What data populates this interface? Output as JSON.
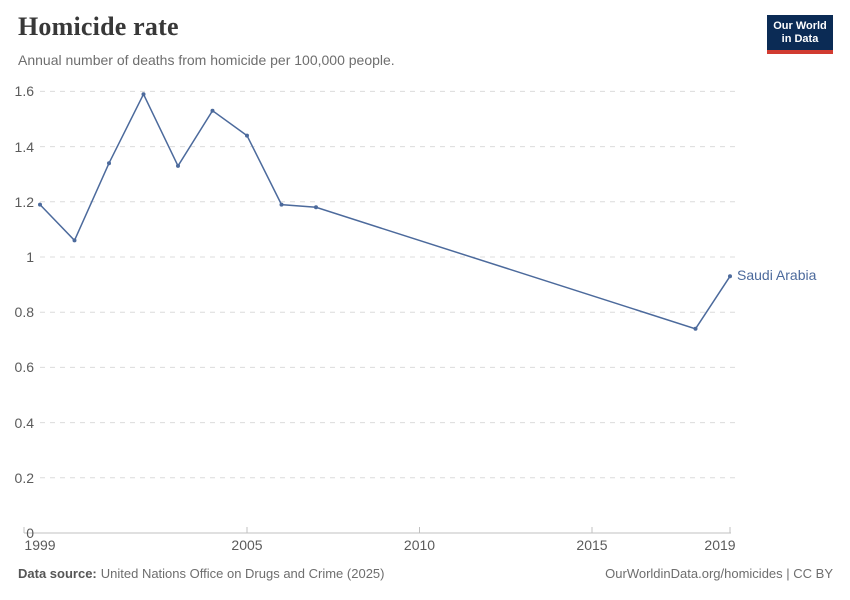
{
  "header": {
    "title": "Homicide rate",
    "subtitle": "Annual number of deaths from homicide per 100,000 people.",
    "logo": {
      "line1": "Our World",
      "line2": "in Data",
      "bg_color": "#0b2b55",
      "accent_color": "#d13b31"
    }
  },
  "footer": {
    "source_label": "Data source:",
    "source_text": "United Nations Office on Drugs and Crime (2025)",
    "link_text": "OurWorldinData.org/homicides | CC BY"
  },
  "chart_data": {
    "type": "line",
    "title": "Homicide rate",
    "subtitle": "Annual number of deaths from homicide per 100,000 people.",
    "series": [
      {
        "name": "Saudi Arabia",
        "color": "#4c6a9c",
        "x": [
          1999,
          2000,
          2001,
          2002,
          2003,
          2004,
          2005,
          2006,
          2007,
          2018,
          2019
        ],
        "y": [
          1.19,
          1.06,
          1.34,
          1.59,
          1.33,
          1.53,
          1.44,
          1.19,
          1.18,
          0.74,
          0.93
        ]
      }
    ],
    "xlabel": "",
    "ylabel": "",
    "xlim": [
      1999,
      2019
    ],
    "ylim": [
      0,
      1.6
    ],
    "xticks": [
      1999,
      2005,
      2010,
      2015,
      2019
    ],
    "yticks": [
      0,
      0.2,
      0.4,
      0.6,
      0.8,
      1,
      1.2,
      1.4,
      1.6
    ],
    "grid": "horizontal-dashed",
    "legend_position": "end-of-line-label",
    "colors": {
      "grid": "#dcdcdc",
      "axis": "#c0c0c0",
      "tick_text": "#5b5b5b"
    }
  }
}
